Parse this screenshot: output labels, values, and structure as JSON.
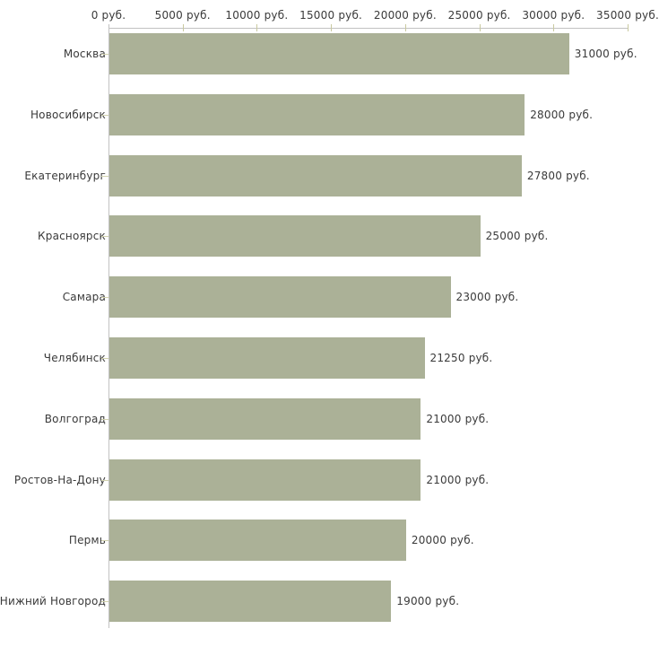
{
  "chart_data": {
    "type": "bar",
    "orientation": "horizontal",
    "title": "",
    "xlabel": "",
    "ylabel": "",
    "unit": "руб.",
    "xlim": [
      0,
      35000
    ],
    "grid": false,
    "legend": false,
    "categories": [
      "Москва",
      "Новосибирск",
      "Екатеринбург",
      "Красноярск",
      "Самара",
      "Челябинск",
      "Волгоград",
      "Ростов-На-Дону",
      "Пермь",
      "Нижний Новгород"
    ],
    "values": [
      31000,
      28000,
      27800,
      25000,
      23000,
      21250,
      21000,
      21000,
      20000,
      19000
    ],
    "value_labels": [
      "31000 руб.",
      "28000 руб.",
      "27800 руб.",
      "25000 руб.",
      "23000 руб.",
      "21250 руб.",
      "21000 руб.",
      "21000 руб.",
      "20000 руб.",
      "19000 руб."
    ],
    "x_tick_values": [
      0,
      5000,
      10000,
      15000,
      20000,
      25000,
      30000,
      35000
    ],
    "x_tick_labels": [
      "0 руб.",
      "5000 руб.",
      "10000 руб.",
      "15000 руб.",
      "20000 руб.",
      "25000 руб.",
      "30000 руб.",
      "35000 руб."
    ],
    "colors": {
      "bar": "#abb197",
      "axis_line": "#c2c2c2",
      "x_tick": "#c9c99f",
      "category_tick": "#d2d2ae",
      "text": "#3a3a3a",
      "background": "#ffffff"
    }
  }
}
